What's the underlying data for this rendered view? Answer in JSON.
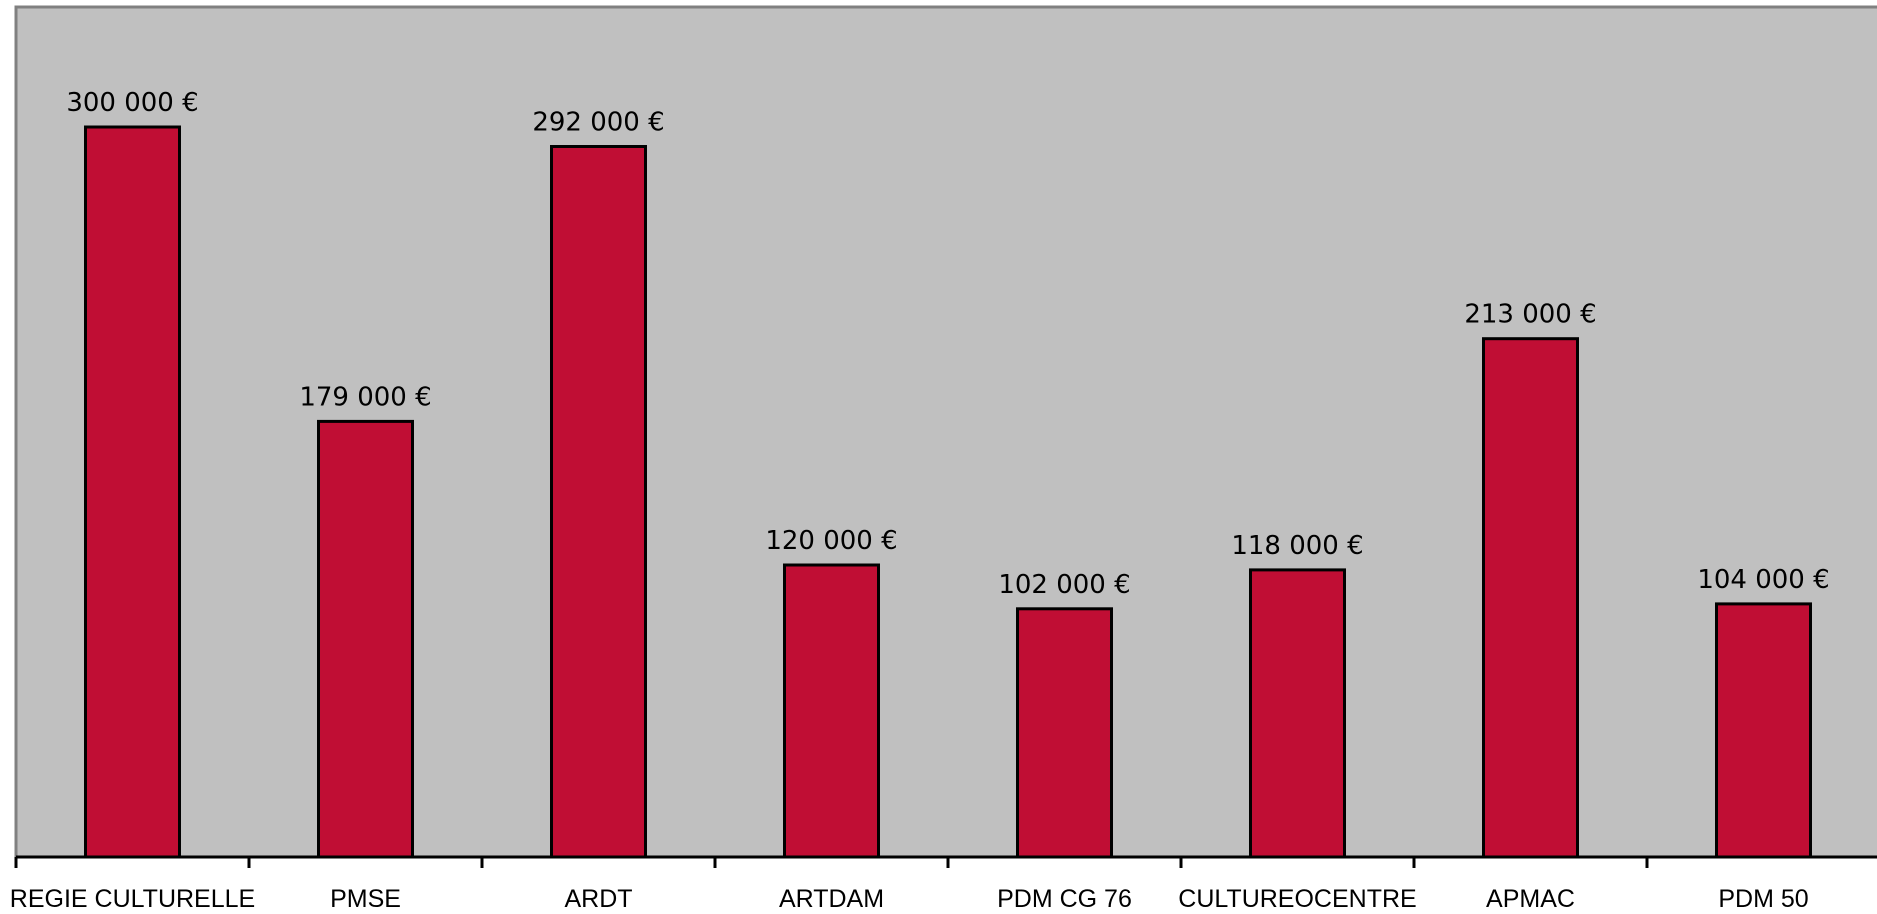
{
  "chart_data": {
    "type": "bar",
    "title": "",
    "xlabel": "",
    "ylabel": "",
    "categories": [
      "REGIE CULTURELLE",
      "PMSE",
      "ARDT",
      "ARTDAM",
      "PDM CG 76",
      "CULTUREOCENTRE",
      "APMAC",
      "PDM 50"
    ],
    "values": [
      300000,
      179000,
      292000,
      120000,
      102000,
      118000,
      213000,
      104000
    ],
    "data_labels": [
      "300 000 €",
      "179 000 €",
      "292 000 €",
      "120 000 €",
      "102 000 €",
      "118 000 €",
      "213 000 €",
      "104 000 €"
    ],
    "ylim": [
      0,
      350000
    ],
    "grid": false,
    "legend": "none",
    "colors": {
      "bar": "#c00e34",
      "plot_background": "#c0c0c0",
      "plot_border": "#808080",
      "axis": "#000000"
    }
  }
}
